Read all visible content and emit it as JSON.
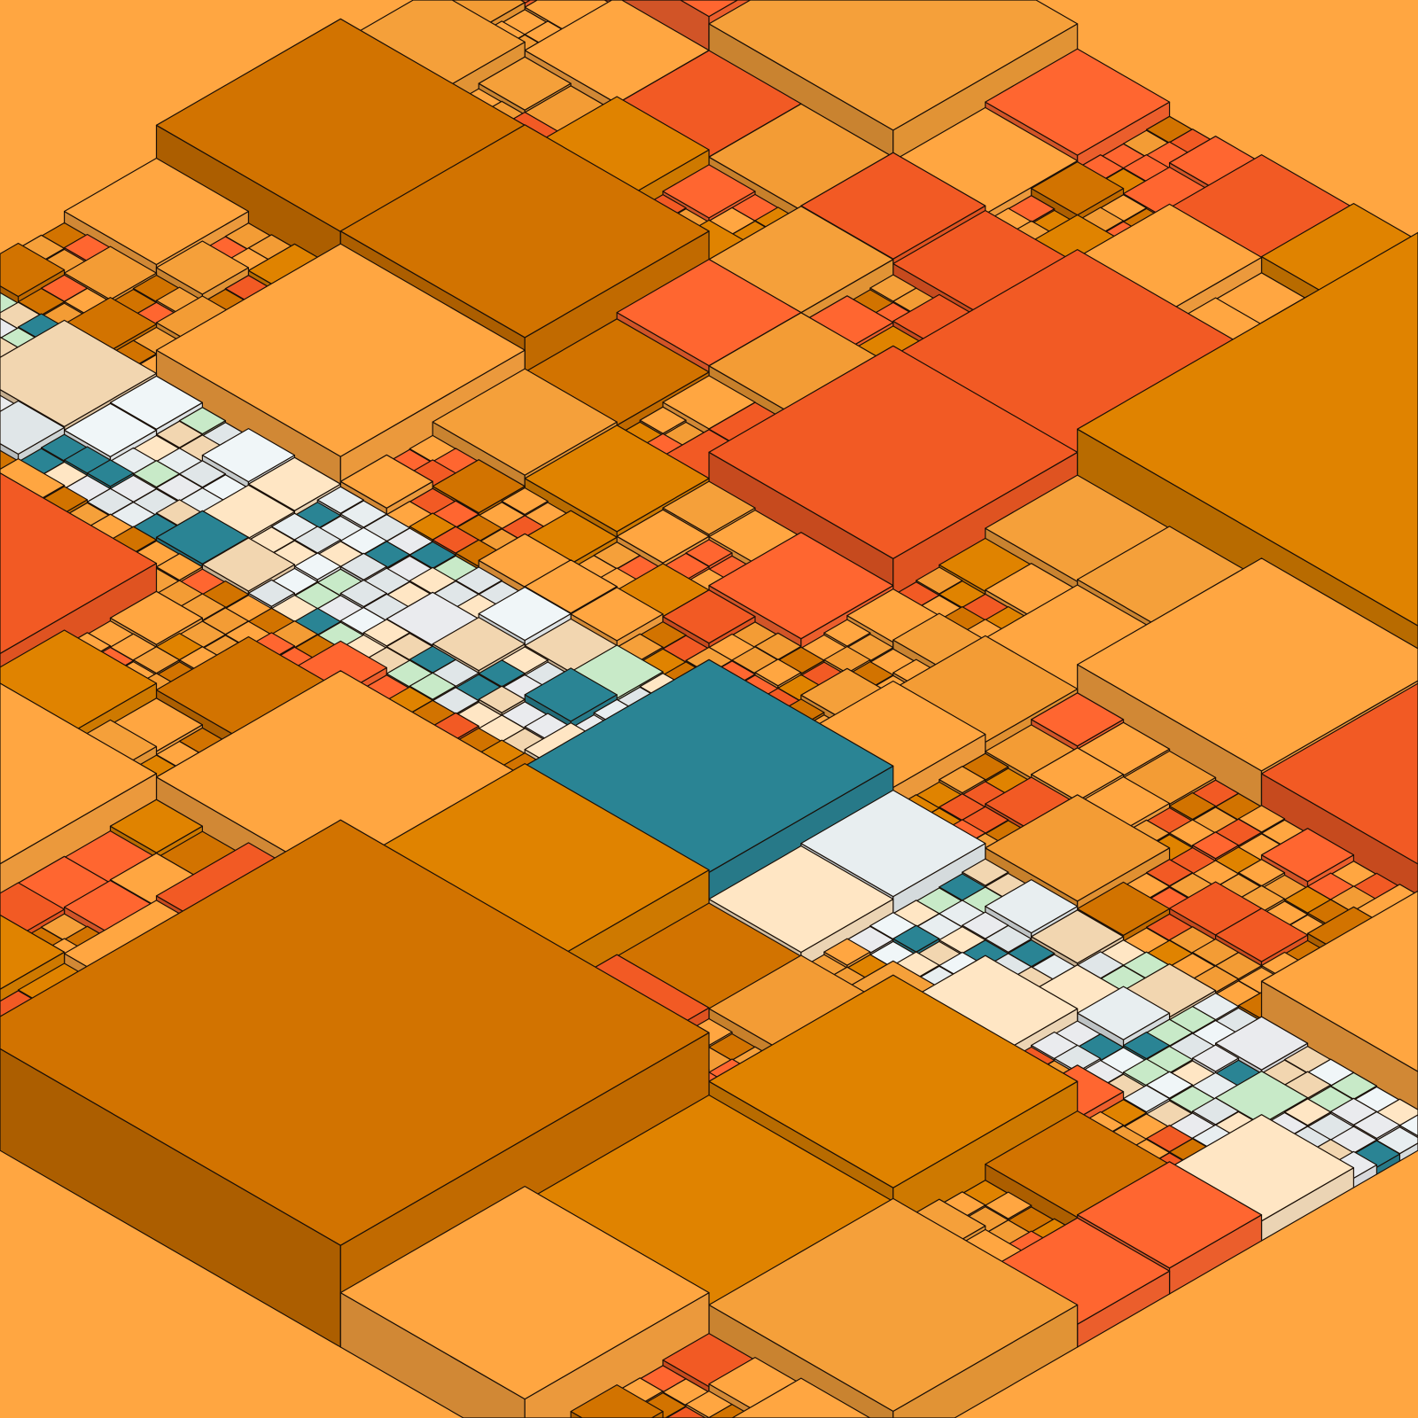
{
  "palette": {
    "field": [
      "#FFA641",
      "#F39C35",
      "#FFA641",
      "#F5A03A",
      "#E08300",
      "#D27300",
      "#FF6630",
      "#F25A24"
    ],
    "band": [
      "#E0E6E8",
      "#EAEBEE",
      "#F0F6F8",
      "#FFE6C4",
      "#F2D6B0",
      "#2A8494",
      "#C8EAC8",
      "#E8EEF0"
    ],
    "stroke": "#1a1008"
  }
}
